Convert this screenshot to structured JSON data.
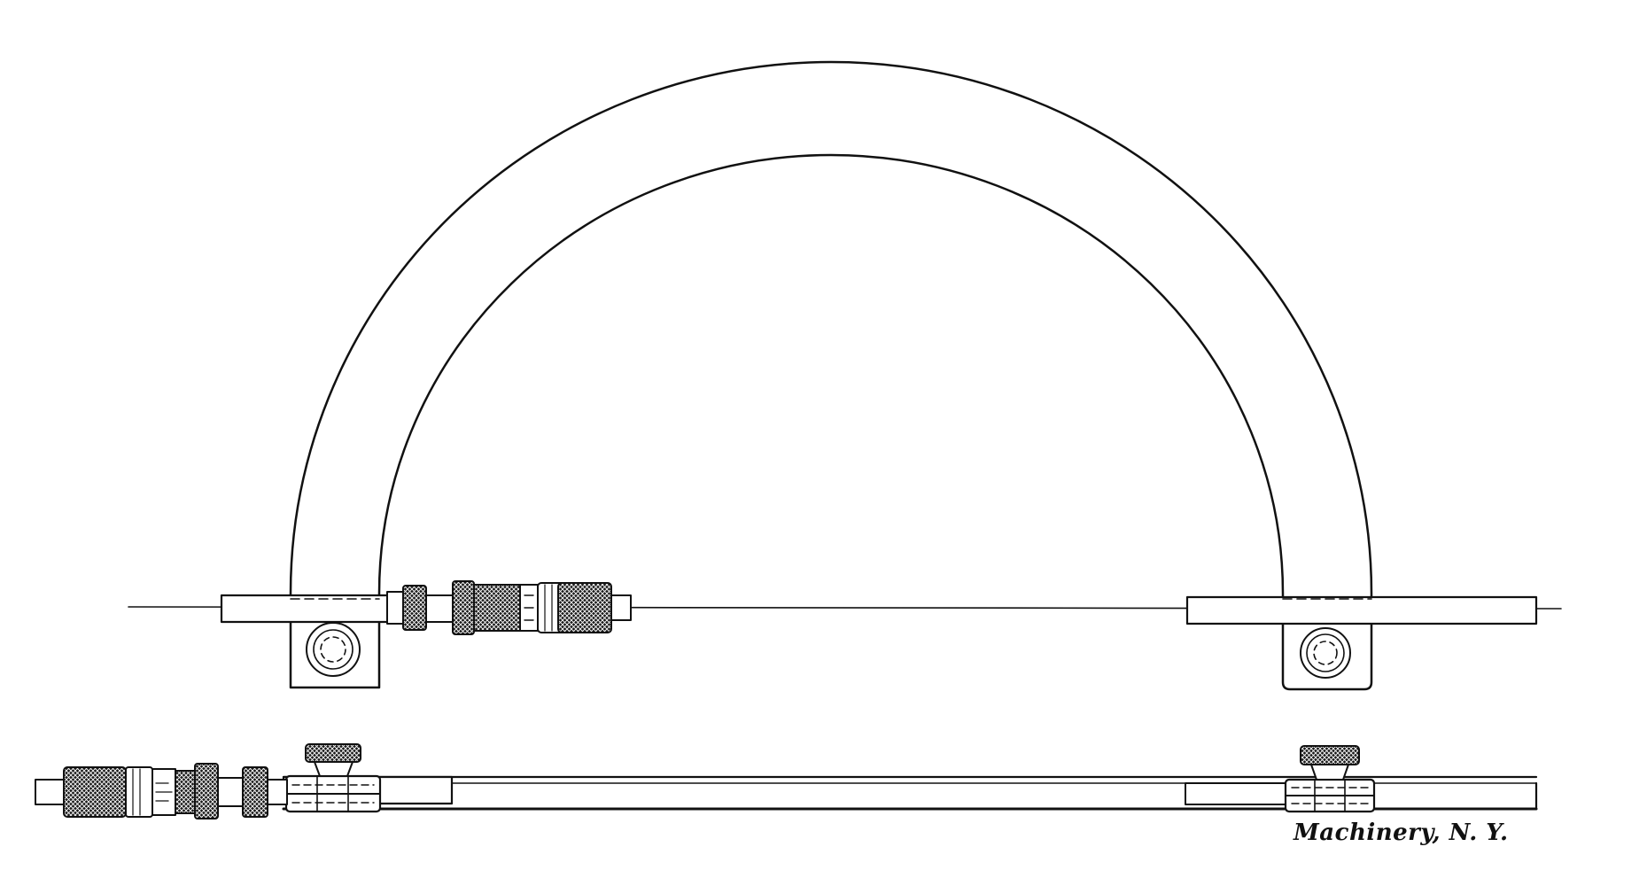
{
  "credit": "Machinery, N. Y.",
  "colors": {
    "line": "#111111",
    "knurl": "#1a1a1a",
    "paper": "#ffffff"
  }
}
